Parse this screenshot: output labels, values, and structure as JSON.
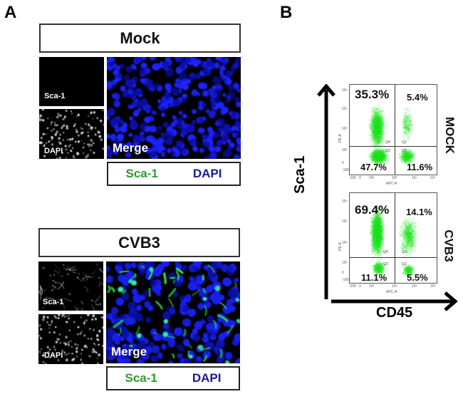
{
  "panel_a": {
    "letter": "A",
    "groups": [
      {
        "title": "Mock",
        "small_panels": [
          {
            "label": "Sca-1",
            "channel": "sca1",
            "signal": "none"
          },
          {
            "label": "DAPI",
            "channel": "dapi",
            "signal": "nuclei"
          }
        ],
        "merge_label": "Merge",
        "merge_signal": "dapi_only",
        "legend": {
          "green_label": "Sca-1",
          "blue_label": "DAPI"
        }
      },
      {
        "title": "CVB3",
        "small_panels": [
          {
            "label": "Sca-1",
            "channel": "sca1",
            "signal": "sparse"
          },
          {
            "label": "DAPI",
            "channel": "dapi",
            "signal": "nuclei"
          }
        ],
        "merge_label": "Merge",
        "merge_signal": "dapi_plus_sca1",
        "legend": {
          "green_label": "Sca-1",
          "blue_label": "DAPI"
        }
      }
    ],
    "colors": {
      "sca1": "#2e9b2e",
      "dapi": "#1a1a9c",
      "merge_blue": "#1c1cff",
      "merge_green": "#22e05a"
    }
  },
  "panel_b": {
    "letter": "B",
    "y_axis_label": "Sca-1",
    "x_axis_label": "CD45",
    "plots": [
      {
        "condition": "MOCK",
        "quadrants": {
          "upper_left": "35.3%",
          "upper_right": "5.4%",
          "lower_left": "47.7%",
          "lower_right": "11.6%"
        },
        "quad_tags": {
          "upper_left": "Q4",
          "upper_right": "Q2",
          "lower_left": "Q3",
          "lower_right": "Q1"
        },
        "x_channel": "APC-A",
        "y_channel": "PE-A"
      },
      {
        "condition": "CVB3",
        "quadrants": {
          "upper_left": "69.4%",
          "upper_right": "14.1%",
          "lower_left": "11.1%",
          "lower_right": "5.5%"
        },
        "quad_tags": {
          "upper_left": "Q4",
          "upper_right": "Q2",
          "lower_left": "Q3",
          "lower_right": "Q1"
        },
        "x_channel": "APC-A",
        "y_channel": "PE-A"
      }
    ],
    "x_ticks": [
      "-100",
      "0",
      "10²",
      "10³",
      "10⁴",
      "10⁵"
    ],
    "y_ticks": [
      "10⁵",
      "10⁴",
      "10³",
      "10²",
      "0",
      "-100"
    ],
    "dot_color": "#22dd22"
  },
  "chart_data": [
    {
      "type": "scatter",
      "title": "MOCK",
      "xlabel": "CD45 (APC-A)",
      "ylabel": "Sca-1 (PE-A)",
      "quadrant_percentages": {
        "Q4_upper_left": 35.3,
        "Q2_upper_right": 5.4,
        "Q3_lower_left": 47.7,
        "Q1_lower_right": 11.6
      },
      "x_scale": "log",
      "y_scale": "log",
      "x_ticks": [
        "-100",
        "0",
        "10^2",
        "10^3",
        "10^4",
        "10^5"
      ],
      "y_ticks": [
        "-100",
        "0",
        "10^2",
        "10^3",
        "10^4",
        "10^5"
      ]
    },
    {
      "type": "scatter",
      "title": "CVB3",
      "xlabel": "CD45 (APC-A)",
      "ylabel": "Sca-1 (PE-A)",
      "quadrant_percentages": {
        "Q4_upper_left": 69.4,
        "Q2_upper_right": 14.1,
        "Q3_lower_left": 11.1,
        "Q1_lower_right": 5.5
      },
      "x_scale": "log",
      "y_scale": "log",
      "x_ticks": [
        "-100",
        "0",
        "10^2",
        "10^3",
        "10^4",
        "10^5"
      ],
      "y_ticks": [
        "-100",
        "0",
        "10^2",
        "10^3",
        "10^4",
        "10^5"
      ]
    }
  ]
}
